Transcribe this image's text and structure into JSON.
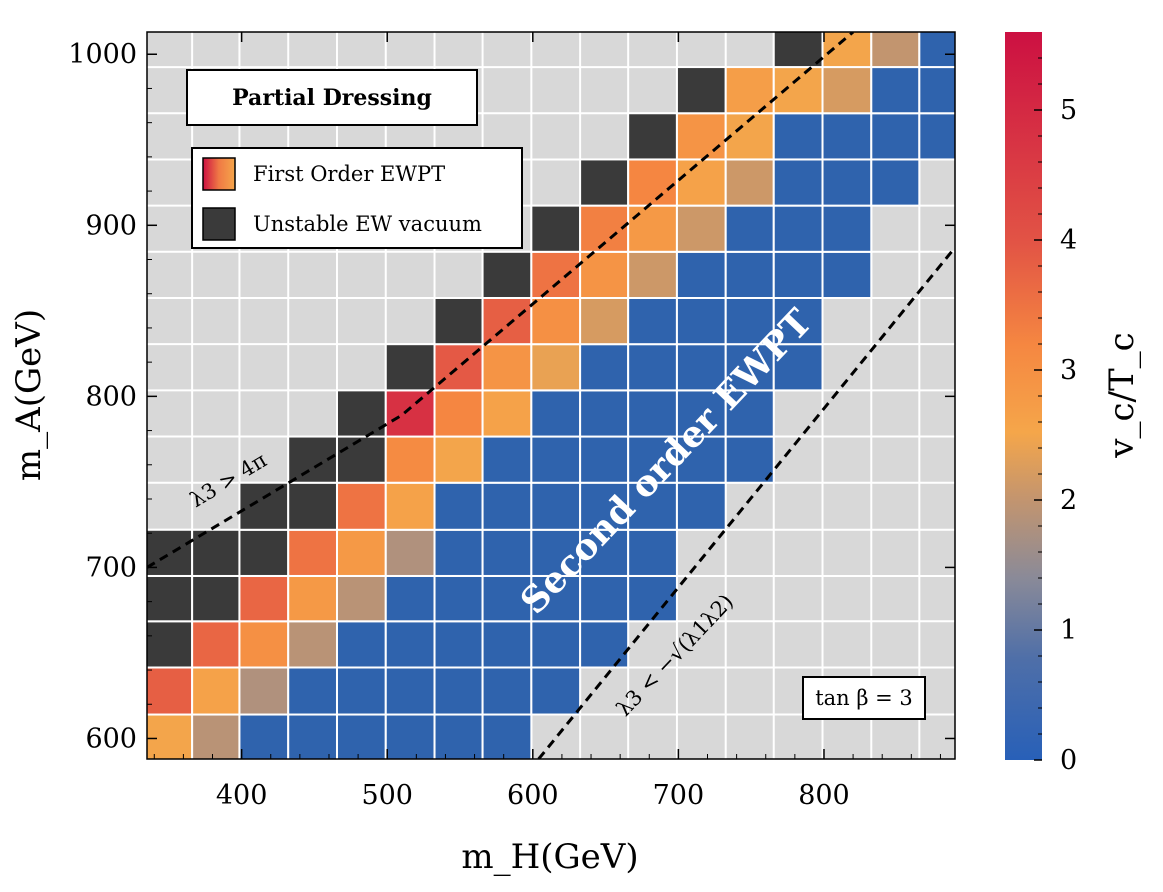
{
  "chart_data": {
    "type": "heatmap",
    "title": "",
    "xlabel": "m_H(GeV)",
    "ylabel": "m_A(GeV)",
    "xlim": [
      335,
      890
    ],
    "ylim": [
      588,
      1013
    ],
    "x_ticks": [
      400,
      500,
      600,
      700,
      800
    ],
    "y_ticks": [
      600,
      700,
      800,
      900,
      1000
    ],
    "x_tick_labels": [
      "400",
      "500",
      "600",
      "700",
      "800"
    ],
    "y_tick_labels": [
      "600",
      "700",
      "800",
      "900",
      "1000"
    ],
    "grid": true,
    "x_centers": [
      350,
      382,
      415,
      449,
      482,
      516,
      549,
      582,
      616,
      649,
      682,
      716,
      749,
      782,
      816,
      849,
      882
    ],
    "y_centers": [
      600,
      628,
      655,
      682,
      708,
      736,
      763,
      790,
      817,
      844,
      871,
      898,
      925,
      952,
      979,
      1006
    ],
    "cells": [
      [
        350,
        600,
        2.5
      ],
      [
        382,
        600,
        1.9
      ],
      [
        415,
        600,
        0
      ],
      [
        449,
        600,
        0
      ],
      [
        482,
        600,
        0
      ],
      [
        516,
        600,
        0
      ],
      [
        549,
        600,
        0
      ],
      [
        582,
        600,
        0
      ],
      [
        350,
        628,
        3.8
      ],
      [
        382,
        628,
        2.6
      ],
      [
        415,
        628,
        1.8
      ],
      [
        449,
        628,
        0
      ],
      [
        482,
        628,
        0
      ],
      [
        516,
        628,
        0
      ],
      [
        549,
        628,
        0
      ],
      [
        582,
        628,
        0
      ],
      [
        616,
        628,
        0
      ],
      [
        350,
        655,
        "unstable"
      ],
      [
        382,
        655,
        3.7
      ],
      [
        415,
        655,
        3.0
      ],
      [
        449,
        655,
        1.9
      ],
      [
        482,
        655,
        0
      ],
      [
        516,
        655,
        0
      ],
      [
        549,
        655,
        0
      ],
      [
        582,
        655,
        0
      ],
      [
        616,
        655,
        0
      ],
      [
        649,
        655,
        0
      ],
      [
        350,
        682,
        "unstable"
      ],
      [
        382,
        682,
        "unstable"
      ],
      [
        415,
        682,
        3.7
      ],
      [
        449,
        682,
        2.8
      ],
      [
        482,
        682,
        1.9
      ],
      [
        516,
        682,
        0
      ],
      [
        549,
        682,
        0
      ],
      [
        582,
        682,
        0
      ],
      [
        616,
        682,
        0
      ],
      [
        649,
        682,
        0
      ],
      [
        682,
        682,
        0
      ],
      [
        350,
        708,
        "unstable"
      ],
      [
        382,
        708,
        "unstable"
      ],
      [
        415,
        708,
        "unstable"
      ],
      [
        449,
        708,
        3.5
      ],
      [
        482,
        708,
        2.8
      ],
      [
        516,
        708,
        1.8
      ],
      [
        549,
        708,
        0
      ],
      [
        582,
        708,
        0
      ],
      [
        616,
        708,
        0
      ],
      [
        649,
        708,
        0
      ],
      [
        682,
        708,
        0
      ],
      [
        415,
        736,
        "unstable"
      ],
      [
        449,
        736,
        "unstable"
      ],
      [
        482,
        736,
        3.5
      ],
      [
        516,
        736,
        2.6
      ],
      [
        549,
        736,
        0
      ],
      [
        582,
        736,
        0
      ],
      [
        616,
        736,
        0
      ],
      [
        649,
        736,
        0
      ],
      [
        682,
        736,
        0
      ],
      [
        716,
        736,
        0
      ],
      [
        449,
        763,
        "unstable"
      ],
      [
        482,
        763,
        "unstable"
      ],
      [
        516,
        763,
        3.1
      ],
      [
        549,
        763,
        2.5
      ],
      [
        582,
        763,
        0
      ],
      [
        616,
        763,
        0
      ],
      [
        649,
        763,
        0
      ],
      [
        682,
        763,
        0
      ],
      [
        716,
        763,
        0
      ],
      [
        749,
        763,
        0
      ],
      [
        482,
        790,
        "unstable"
      ],
      [
        516,
        790,
        4.8
      ],
      [
        549,
        790,
        3.2
      ],
      [
        582,
        790,
        2.6
      ],
      [
        616,
        790,
        0
      ],
      [
        649,
        790,
        0
      ],
      [
        682,
        790,
        0
      ],
      [
        716,
        790,
        0
      ],
      [
        749,
        790,
        0
      ],
      [
        516,
        817,
        "unstable"
      ],
      [
        549,
        817,
        3.9
      ],
      [
        582,
        817,
        2.9
      ],
      [
        616,
        817,
        2.4
      ],
      [
        649,
        817,
        0
      ],
      [
        682,
        817,
        0
      ],
      [
        716,
        817,
        0
      ],
      [
        749,
        817,
        0
      ],
      [
        782,
        817,
        0
      ],
      [
        549,
        844,
        "unstable"
      ],
      [
        582,
        844,
        3.8
      ],
      [
        616,
        844,
        3.0
      ],
      [
        649,
        844,
        2.2
      ],
      [
        682,
        844,
        0
      ],
      [
        716,
        844,
        0
      ],
      [
        749,
        844,
        0
      ],
      [
        782,
        844,
        0
      ],
      [
        582,
        871,
        "unstable"
      ],
      [
        616,
        871,
        3.5
      ],
      [
        649,
        871,
        2.9
      ],
      [
        682,
        871,
        2.1
      ],
      [
        716,
        871,
        0
      ],
      [
        749,
        871,
        0
      ],
      [
        782,
        871,
        0
      ],
      [
        816,
        871,
        0
      ],
      [
        616,
        898,
        "unstable"
      ],
      [
        649,
        898,
        3.3
      ],
      [
        682,
        898,
        2.8
      ],
      [
        716,
        898,
        2.1
      ],
      [
        749,
        898,
        0
      ],
      [
        782,
        898,
        0
      ],
      [
        816,
        898,
        0
      ],
      [
        649,
        925,
        "unstable"
      ],
      [
        682,
        925,
        3.2
      ],
      [
        716,
        925,
        2.6
      ],
      [
        749,
        925,
        2.1
      ],
      [
        782,
        925,
        0
      ],
      [
        816,
        925,
        0
      ],
      [
        849,
        925,
        0
      ],
      [
        682,
        952,
        "unstable"
      ],
      [
        716,
        952,
        2.9
      ],
      [
        749,
        952,
        2.5
      ],
      [
        782,
        952,
        0
      ],
      [
        816,
        952,
        0
      ],
      [
        849,
        952,
        0
      ],
      [
        882,
        952,
        0
      ],
      [
        716,
        979,
        "unstable"
      ],
      [
        749,
        979,
        2.7
      ],
      [
        782,
        979,
        2.5
      ],
      [
        816,
        979,
        2.2
      ],
      [
        849,
        979,
        0
      ],
      [
        882,
        979,
        0
      ],
      [
        782,
        1006,
        "unstable"
      ],
      [
        816,
        1006,
        2.5
      ],
      [
        849,
        1006,
        2.0
      ],
      [
        882,
        1006,
        0
      ]
    ],
    "colorbar": {
      "label": "v_c/T_c",
      "range": [
        0,
        5.6
      ],
      "ticks": [
        0,
        1,
        2,
        3,
        4,
        5
      ],
      "tick_labels": [
        "0",
        "1",
        "2",
        "3",
        "4",
        "5"
      ]
    },
    "boundaries": [
      {
        "name": "upper",
        "points": [
          [
            335,
            700
          ],
          [
            510,
            789
          ],
          [
            820,
            1013
          ]
        ]
      },
      {
        "name": "lower",
        "points": [
          [
            604,
            588
          ],
          [
            890,
            887
          ]
        ]
      }
    ],
    "legend": {
      "location": "top-left",
      "entries": [
        "First Order EWPT",
        "Unstable EW vacuum"
      ]
    },
    "annotations": {
      "box_title": "Partial Dressing",
      "region_label": "Second order EWPT",
      "upper_bound": "λ3 > 4π",
      "lower_bound": "λ3 < −√(λ1λ2)",
      "tan_beta": "tan β = 3"
    }
  },
  "colors": {
    "background": "#d8d8d8",
    "grid": "#ffffff",
    "unstable": "#3a3a3a",
    "second_order": "#2f63ad",
    "colormap_stops": [
      "#2860b8",
      "#4f6fa8",
      "#8a8a98",
      "#c4956e",
      "#f5a64a",
      "#f58741",
      "#e25445",
      "#cc1042"
    ]
  }
}
